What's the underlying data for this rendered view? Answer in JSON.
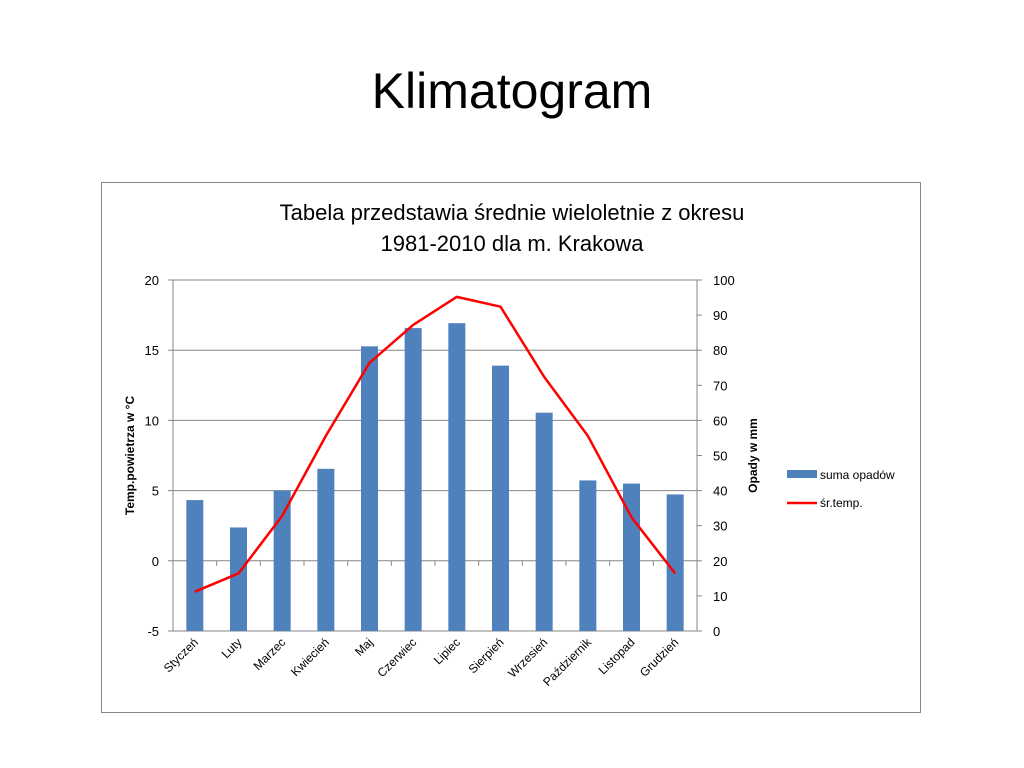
{
  "slide": {
    "title": "Klimatogram"
  },
  "chart_data": {
    "type": "bar+line",
    "title": [
      "Tabela przedstawia średnie wieloletnie z okresu",
      "1981-2010 dla m. Krakowa"
    ],
    "categories": [
      "Styczeń",
      "Luty",
      "Marzec",
      "Kwiecień",
      "Maj",
      "Czerwiec",
      "Lipiec",
      "Sierpień",
      "Wrzesień",
      "Październik",
      "Listopad",
      "Grudzień"
    ],
    "series": [
      {
        "name": "suma opadów",
        "type": "bar",
        "axis": "right",
        "color": "#4F81BD",
        "values": [
          37.3,
          29.5,
          40.0,
          46.2,
          81.1,
          86.3,
          87.7,
          75.6,
          62.2,
          42.9,
          42.0,
          38.9
        ]
      },
      {
        "name": "śr.temp.",
        "type": "line",
        "axis": "left",
        "color": "#FF0000",
        "values": [
          -2.2,
          -0.9,
          3.2,
          8.9,
          14.1,
          16.8,
          18.8,
          18.1,
          13.1,
          8.9,
          3.1,
          -0.9
        ]
      }
    ],
    "ylabel": "Temp.powietrza w °C",
    "ylabel_right": "Opady w mm",
    "ylim": [
      -5,
      20
    ],
    "ylim_right": [
      0,
      100
    ],
    "yticks": [
      "-5",
      "0",
      "5",
      "10",
      "15",
      "20"
    ],
    "yticks_right": [
      "0",
      "10",
      "20",
      "30",
      "40",
      "50",
      "60",
      "70",
      "80",
      "90",
      "100"
    ],
    "grid": true,
    "legend": "right"
  }
}
